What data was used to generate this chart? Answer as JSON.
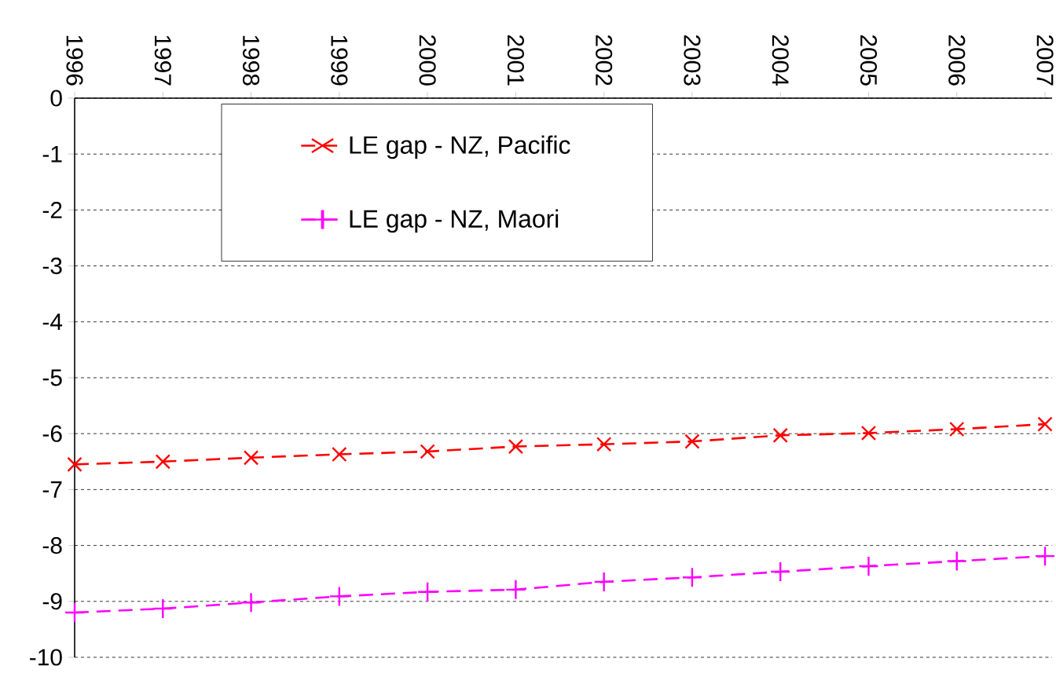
{
  "chart_data": {
    "type": "line",
    "categories": [
      "1996",
      "1997",
      "1998",
      "1999",
      "2000",
      "2001",
      "2002",
      "2003",
      "2004",
      "2005",
      "2006",
      "2007"
    ],
    "series": [
      {
        "name": "LE gap - NZ, Pacific",
        "color": "#ff0000",
        "marker": "cross",
        "values": [
          -6.55,
          -6.5,
          -6.43,
          -6.37,
          -6.32,
          -6.23,
          -6.19,
          -6.14,
          -6.03,
          -5.99,
          -5.92,
          -5.83
        ]
      },
      {
        "name": "LE gap - NZ, Maori",
        "color": "#ff00ff",
        "marker": "cross",
        "values": [
          -9.2,
          -9.13,
          -9.02,
          -8.91,
          -8.83,
          -8.79,
          -8.65,
          -8.57,
          -8.47,
          -8.37,
          -8.28,
          -8.19
        ]
      }
    ],
    "ylim": [
      -10,
      0
    ],
    "yticks": [
      -10,
      -9,
      -8,
      -7,
      -6,
      -5,
      -4,
      -3,
      -2,
      -1,
      0
    ],
    "grid": "y",
    "legend": "top",
    "line_style": "dashed"
  }
}
